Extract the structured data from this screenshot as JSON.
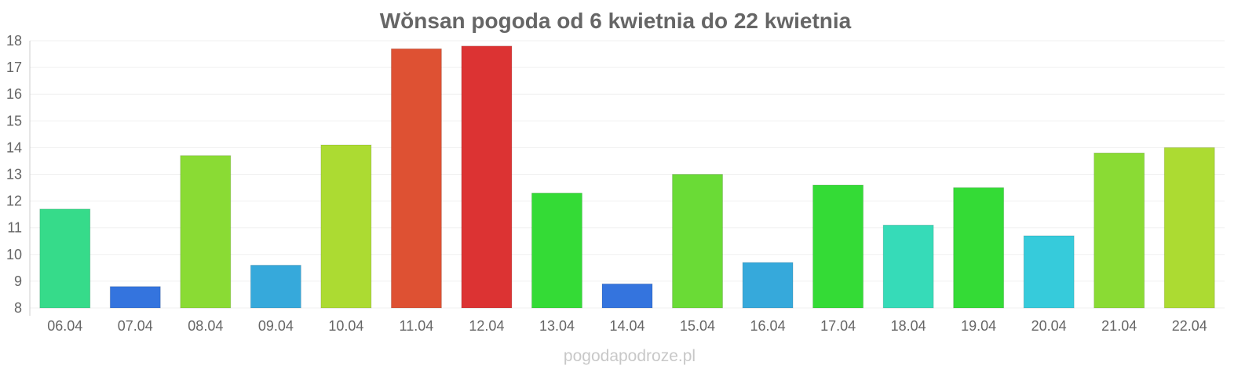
{
  "chart_data": {
    "type": "bar",
    "title": "Wŏnsan pogoda od 6 kwietnia do 22 kwietnia",
    "xlabel": "",
    "ylabel": "",
    "ylim": [
      8,
      18
    ],
    "yticks": [
      "8",
      "9",
      "10",
      "11",
      "12",
      "13",
      "14",
      "15",
      "16",
      "17",
      "18"
    ],
    "grid": true,
    "categories": [
      "06.04",
      "07.04",
      "08.04",
      "09.04",
      "10.04",
      "11.04",
      "12.04",
      "13.04",
      "14.04",
      "15.04",
      "16.04",
      "17.04",
      "18.04",
      "19.04",
      "20.04",
      "21.04",
      "22.04"
    ],
    "values": [
      11.7,
      8.8,
      13.7,
      9.6,
      14.1,
      17.7,
      17.8,
      12.3,
      8.9,
      13.0,
      9.7,
      12.6,
      11.1,
      12.5,
      10.7,
      13.8,
      14.0
    ],
    "colors": [
      "#36db8a",
      "#3474de",
      "#8adb34",
      "#36a9db",
      "#acdb32",
      "#de5133",
      "#dc3333",
      "#34db36",
      "#3474de",
      "#6adb36",
      "#36a9db",
      "#34db36",
      "#36dbb8",
      "#34db36",
      "#36cbdb",
      "#8adb34",
      "#acdb32"
    ]
  },
  "watermark": "pogodapodroze.pl"
}
